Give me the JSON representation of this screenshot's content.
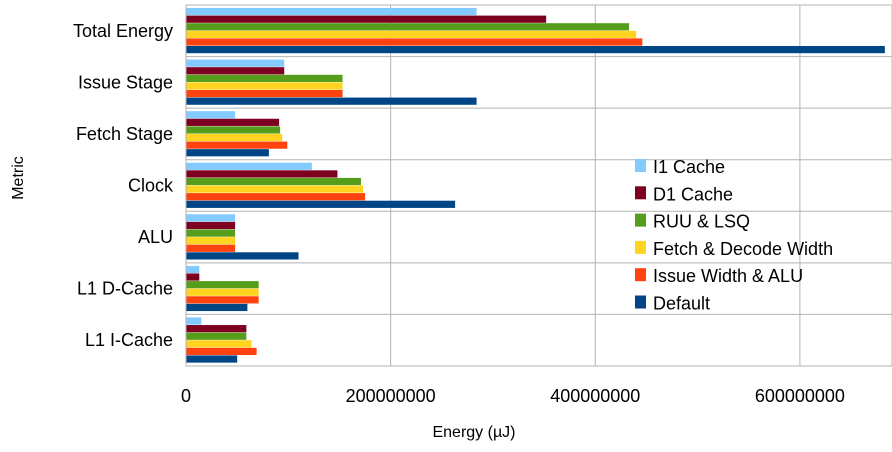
{
  "chart_data": {
    "type": "bar",
    "orientation": "horizontal",
    "xlabel": "Energy (µJ)",
    "ylabel": "Metric",
    "xlim": [
      0,
      690000000
    ],
    "xticks": [
      0,
      200000000,
      400000000,
      600000000
    ],
    "xtick_labels": [
      "0",
      "200000000",
      "400000000",
      "600000000"
    ],
    "grid": true,
    "legend_position": "right",
    "categories": [
      "Total Energy",
      "Issue Stage",
      "Fetch Stage",
      "Clock",
      "ALU",
      "L1 D-Cache",
      "L1 I-Cache"
    ],
    "series": [
      {
        "name": "I1 Cache",
        "color": "#83caff",
        "values": [
          284000000,
          96000000,
          48000000,
          123000000,
          48000000,
          13000000,
          15000000
        ]
      },
      {
        "name": "D1 Cache",
        "color": "#7e0021",
        "values": [
          352000000,
          96000000,
          91000000,
          148000000,
          48000000,
          13000000,
          59000000
        ]
      },
      {
        "name": "RUU & LSQ",
        "color": "#579d1c",
        "values": [
          433000000,
          153000000,
          92000000,
          171000000,
          48000000,
          71000000,
          59000000
        ]
      },
      {
        "name": "Fetch & Decode Width",
        "color": "#ffd320",
        "values": [
          440000000,
          153000000,
          94000000,
          173000000,
          48000000,
          71000000,
          64000000
        ]
      },
      {
        "name": "Issue Width & ALU",
        "color": "#ff420e",
        "values": [
          446000000,
          153000000,
          99000000,
          175000000,
          48000000,
          71000000,
          69000000
        ]
      },
      {
        "name": "Default",
        "color": "#004586",
        "values": [
          683000000,
          284000000,
          81000000,
          263000000,
          110000000,
          60000000,
          50000000
        ]
      }
    ]
  }
}
